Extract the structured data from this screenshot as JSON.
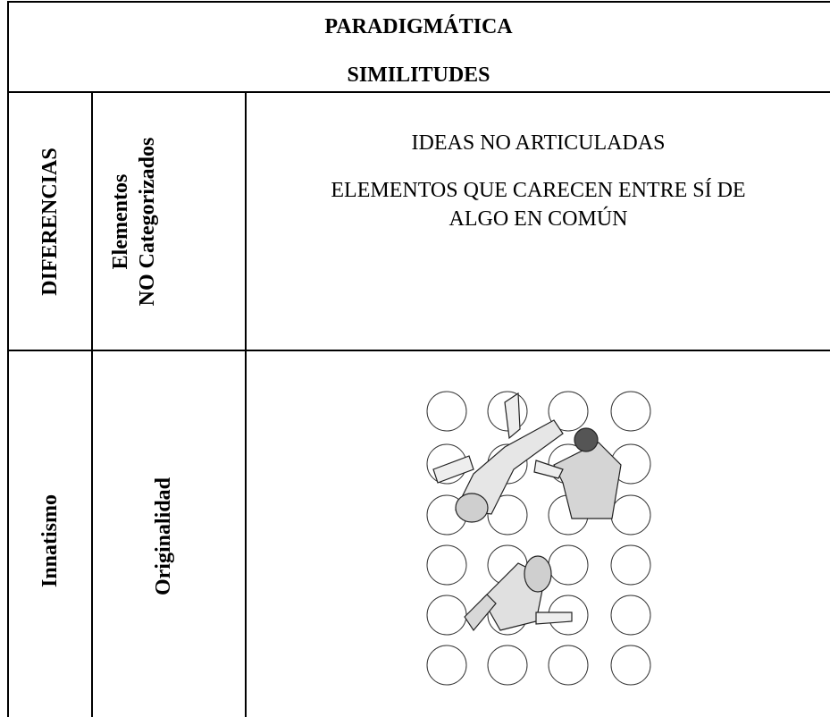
{
  "header": {
    "title": "PARADIGMÁTICA",
    "subtitle": "SIMILITUDES"
  },
  "rows": [
    {
      "label": "DIFERENCIAS",
      "sublabel": [
        "Elementos",
        "NO Categorizados"
      ],
      "content": [
        "IDEAS NO ARTICULADAS",
        "ELEMENTOS QUE CARECEN ENTRE SÍ DE",
        "ALGO EN COMÚN"
      ]
    },
    {
      "label": "Innatismo",
      "sublabel": [
        "Originalidad"
      ]
    }
  ]
}
